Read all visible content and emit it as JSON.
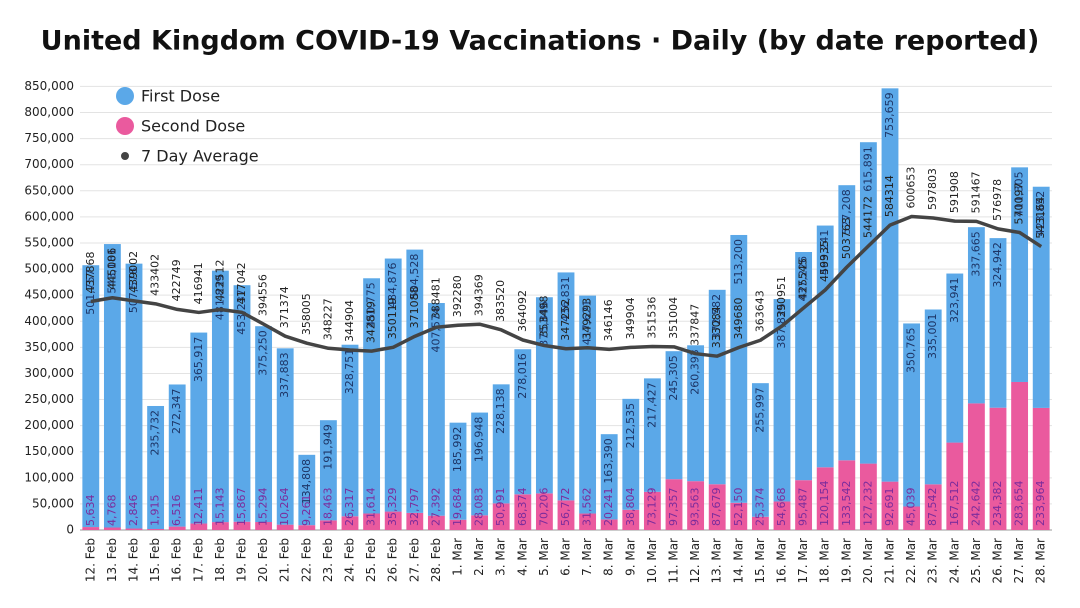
{
  "chart_data": {
    "type": "stacked_bar_line",
    "title": "United Kingdom COVID-19 Vaccinations · Daily (by date reported)",
    "categories": [
      "12. Feb",
      "13. Feb",
      "14. Feb",
      "15. Feb",
      "16. Feb",
      "17. Feb",
      "18. Feb",
      "19. Feb",
      "20. Feb",
      "21. Feb",
      "22. Feb",
      "23. Feb",
      "24. Feb",
      "25. Feb",
      "26. Feb",
      "27. Feb",
      "28. Feb",
      "1. Mar",
      "2. Mar",
      "3. Mar",
      "4. Mar",
      "5. Mar",
      "6. Mar",
      "7. Mar",
      "8. Mar",
      "9. Mar",
      "10. Mar",
      "11. Mar",
      "12. Mar",
      "13. Mar",
      "14. Mar",
      "15. Mar",
      "16. Mar",
      "17. Mar",
      "18. Mar",
      "19. Mar",
      "20. Mar",
      "21. Mar",
      "22. Mar",
      "23. Mar",
      "24. Mar",
      "25. Mar",
      "26. Mar",
      "27. Mar",
      "28. Mar"
    ],
    "series": [
      {
        "name": "First Dose",
        "color": "#5ba8e8",
        "values": [
          501757,
          543181,
          507578,
          235732,
          272347,
          365917,
          481839,
          453237,
          375250,
          337883,
          134808,
          191949,
          328751,
          450775,
          484876,
          504528,
          407574,
          185992,
          196948,
          228138,
          278016,
          375846,
          436831,
          417621,
          163390,
          212535,
          217427,
          245305,
          260393,
          372582,
          513200,
          255997,
          387825,
          437226,
          463241,
          527208,
          615891,
          753659,
          350765,
          335001,
          323941,
          337665,
          324942,
          411305,
          423852
        ],
        "value_labels": [
          "501,757",
          "543,181",
          "507,578",
          "235,732",
          "272,347",
          "365,917",
          "481,839",
          "453,237",
          "375,250",
          "337,883",
          "134,808",
          "191,949",
          "328,751",
          "450,775",
          "484,876",
          "504,528",
          "407,574",
          "185,992",
          "196,948",
          "228,138",
          "278,016",
          "375,846",
          "436,831",
          "417,621",
          "163,390",
          "212,535",
          "217,427",
          "245,305",
          "260,393",
          "372,582",
          "513,200",
          "255,997",
          "387,825",
          "437,226",
          "463,241",
          "527,208",
          "615,891",
          "753,659",
          "350,765",
          "335,001",
          "323,941",
          "337,665",
          "324,942",
          "411,305",
          "423,852"
        ]
      },
      {
        "name": "Second Dose",
        "color": "#ea5a9e",
        "values": [
          5634,
          4768,
          2846,
          1915,
          6516,
          12411,
          15143,
          15867,
          15294,
          10264,
          9261,
          18463,
          26317,
          31614,
          35329,
          32797,
          27392,
          19684,
          28083,
          50991,
          68374,
          70206,
          56772,
          31562,
          20241,
          38804,
          73129,
          97357,
          93563,
          87679,
          52150,
          25374,
          54668,
          95487,
          120154,
          133542,
          127232,
          92691,
          45039,
          87542,
          167512,
          242642,
          234382,
          283654,
          233964
        ],
        "value_labels": [
          "5,634",
          "4,768",
          "2,846",
          "1,915",
          "6,516",
          "12,411",
          "15,143",
          "15,867",
          "15,294",
          "10,264",
          "9,261",
          "18,463",
          "26,317",
          "31,614",
          "35,329",
          "32,797",
          "27,392",
          "19,684",
          "28,083",
          "50,991",
          "68,374",
          "70,206",
          "56,772",
          "31,562",
          "20,241",
          "38,804",
          "73,129",
          "97,357",
          "93,563",
          "87,679",
          "52,150",
          "25,374",
          "54,668",
          "95,487",
          "120,154",
          "133,542",
          "127,232",
          "92,691",
          "45,039",
          "87,542",
          "167,512",
          "242,642",
          "234,382",
          "283,654",
          "233,964"
        ]
      },
      {
        "name": "7 Day Average",
        "color": "#444444",
        "type": "line",
        "values": [
          437868,
          445006,
          439002,
          433402,
          422749,
          416941,
          422512,
          417042,
          394556,
          371374,
          358005,
          348227,
          344904,
          342819,
          350119,
          371088,
          388481,
          392280,
          394369,
          383520,
          364092,
          353498,
          347252,
          349293,
          346146,
          349904,
          351536,
          351004,
          337847,
          333084,
          349680,
          363643,
          390951,
          425545,
          459935,
          503763,
          544172,
          584314,
          600653,
          597803,
          591908,
          591467,
          576978,
          570097,
          543164
        ]
      }
    ],
    "ylim": [
      0,
      870000
    ],
    "yticks": [
      0,
      {
        "value": 50000,
        "label": "50,000"
      },
      {
        "value": 100000,
        "label": "100,000"
      },
      {
        "value": 150000,
        "label": "150,000"
      },
      {
        "value": 200000,
        "label": "200,000"
      },
      {
        "value": 250000,
        "label": "250,000"
      },
      {
        "value": 300000,
        "label": "300,000"
      },
      {
        "value": 350000,
        "label": "350,000"
      },
      {
        "value": 400000,
        "label": "400,000"
      },
      {
        "value": 450000,
        "label": "450,000"
      },
      {
        "value": 500000,
        "label": "500,000"
      },
      {
        "value": 550000,
        "label": "550,000"
      },
      {
        "value": 600000,
        "label": "600,000"
      },
      {
        "value": 650000,
        "label": "650,000"
      },
      {
        "value": 700000,
        "label": "700,000"
      },
      {
        "value": 750000,
        "label": "750,000"
      },
      {
        "value": 800000,
        "label": "800,000"
      },
      {
        "value": 850000,
        "label": "850,000"
      }
    ],
    "grid": true,
    "legend": "top-left"
  }
}
